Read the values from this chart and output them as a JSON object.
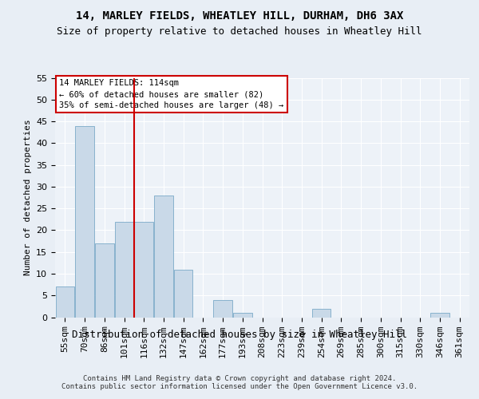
{
  "title1": "14, MARLEY FIELDS, WHEATLEY HILL, DURHAM, DH6 3AX",
  "title2": "Size of property relative to detached houses in Wheatley Hill",
  "xlabel": "Distribution of detached houses by size in Wheatley Hill",
  "ylabel": "Number of detached properties",
  "categories": [
    "55sqm",
    "70sqm",
    "86sqm",
    "101sqm",
    "116sqm",
    "132sqm",
    "147sqm",
    "162sqm",
    "177sqm",
    "193sqm",
    "208sqm",
    "223sqm",
    "239sqm",
    "254sqm",
    "269sqm",
    "285sqm",
    "300sqm",
    "315sqm",
    "330sqm",
    "346sqm",
    "361sqm"
  ],
  "values": [
    7,
    44,
    17,
    22,
    22,
    28,
    11,
    0,
    4,
    1,
    0,
    0,
    0,
    2,
    0,
    0,
    0,
    0,
    0,
    1,
    0
  ],
  "bar_color": "#c9d9e8",
  "bar_edge_color": "#7baac8",
  "vline_color": "#cc0000",
  "annotation_text": "14 MARLEY FIELDS: 114sqm\n← 60% of detached houses are smaller (82)\n35% of semi-detached houses are larger (48) →",
  "annotation_box_color": "#ffffff",
  "annotation_box_edge_color": "#cc0000",
  "ylim": [
    0,
    55
  ],
  "yticks": [
    0,
    5,
    10,
    15,
    20,
    25,
    30,
    35,
    40,
    45,
    50,
    55
  ],
  "footer": "Contains HM Land Registry data © Crown copyright and database right 2024.\nContains public sector information licensed under the Open Government Licence v3.0.",
  "bg_color": "#e8eef5",
  "plot_bg_color": "#edf2f8",
  "title1_fontsize": 10,
  "title2_fontsize": 9,
  "xlabel_fontsize": 9,
  "ylabel_fontsize": 8,
  "tick_fontsize": 8,
  "footer_fontsize": 6.5
}
